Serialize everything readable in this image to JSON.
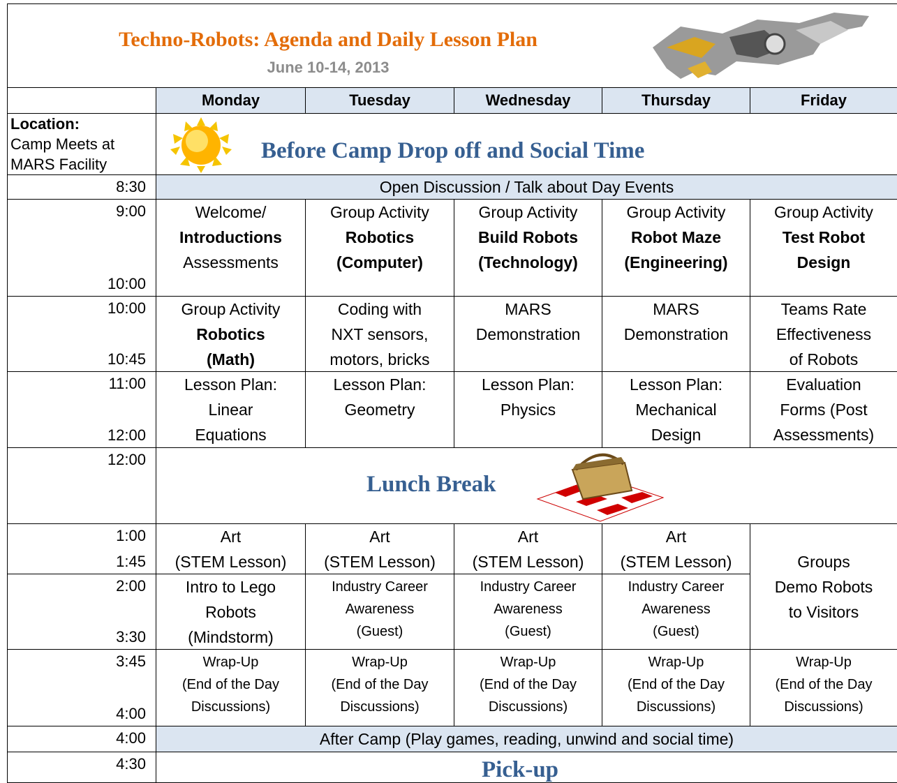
{
  "header": {
    "title": "Techno-Robots: Agenda and Daily Lesson Plan",
    "date": "June 10-14, 2013"
  },
  "table": {
    "days": [
      "Monday",
      "Tuesday",
      "Wednesday",
      "Thursday",
      "Friday"
    ],
    "location": {
      "lines": [
        {
          "text": "Location:",
          "bold": true
        },
        {
          "text": "Camp Meets at"
        },
        {
          "text": "MARS Facility"
        }
      ],
      "banner": "Before Camp Drop off and Social Time"
    },
    "rows": [
      {
        "start": "8:30",
        "span": "Open Discussion / Talk about Day Events",
        "shaded": true
      },
      {
        "start": "9:00",
        "end": "10:00",
        "cells": [
          {
            "lines": [
              {
                "text": "Welcome/"
              },
              {
                "text": "Introductions",
                "bold": true
              },
              {
                "text": "Assessments"
              }
            ]
          },
          {
            "lines": [
              {
                "text": "Group Activity"
              },
              {
                "text": "Robotics",
                "bold": true
              },
              {
                "text": "(Computer)",
                "bold": true
              }
            ]
          },
          {
            "lines": [
              {
                "text": "Group Activity"
              },
              {
                "text": "Build Robots",
                "bold": true
              },
              {
                "text": "(Technology)",
                "bold": true
              }
            ]
          },
          {
            "lines": [
              {
                "text": "Group Activity"
              },
              {
                "text": "Robot Maze",
                "bold": true
              },
              {
                "text": "(Engineering)",
                "bold": true
              }
            ]
          },
          {
            "lines": [
              {
                "text": "Group Activity"
              },
              {
                "text": "Test Robot",
                "bold": true
              },
              {
                "text": "Design",
                "bold": true
              }
            ]
          }
        ]
      },
      {
        "start": "10:00",
        "end": "10:45",
        "cells": [
          {
            "lines": [
              {
                "text": "Group Activity"
              },
              {
                "text": "Robotics",
                "bold": true
              },
              {
                "text": "(Math)",
                "bold": true
              }
            ]
          },
          {
            "lines": [
              {
                "text": "Coding with"
              },
              {
                "text": "NXT sensors,"
              },
              {
                "text": "motors, bricks"
              }
            ]
          },
          {
            "lines": [
              {
                "text": "MARS"
              },
              {
                "text": "Demonstration"
              }
            ]
          },
          {
            "lines": [
              {
                "text": "MARS"
              },
              {
                "text": "Demonstration"
              }
            ]
          },
          {
            "lines": [
              {
                "text": "Teams Rate"
              },
              {
                "text": "Effectiveness"
              },
              {
                "text": "of Robots"
              }
            ]
          }
        ]
      },
      {
        "start": "11:00",
        "end": "12:00",
        "cells": [
          {
            "lines": [
              {
                "text": "Lesson Plan:"
              },
              {
                "text": "Linear"
              },
              {
                "text": "Equations"
              }
            ]
          },
          {
            "lines": [
              {
                "text": "Lesson Plan:"
              },
              {
                "text": "Geometry"
              }
            ]
          },
          {
            "lines": [
              {
                "text": "Lesson Plan:"
              },
              {
                "text": "Physics"
              }
            ]
          },
          {
            "lines": [
              {
                "text": "Lesson Plan:"
              },
              {
                "text": "Mechanical"
              },
              {
                "text": "Design"
              }
            ]
          },
          {
            "lines": [
              {
                "text": "Evaluation"
              },
              {
                "text": "Forms (Post"
              },
              {
                "text": "Assessments)"
              }
            ]
          }
        ]
      },
      {
        "start": "12:00",
        "banner": "Lunch Break"
      },
      {
        "start": "1:00",
        "end": "1:45",
        "cells": [
          {
            "lines": [
              {
                "text": "Art"
              },
              {
                "text": "(STEM Lesson)"
              }
            ]
          },
          {
            "lines": [
              {
                "text": "Art"
              },
              {
                "text": "(STEM Lesson)"
              }
            ]
          },
          {
            "lines": [
              {
                "text": "Art"
              },
              {
                "text": "(STEM Lesson)"
              }
            ]
          },
          {
            "lines": [
              {
                "text": "Art"
              },
              {
                "text": "(STEM Lesson)"
              }
            ]
          },
          {
            "lines": [
              {
                "text": "Groups"
              },
              {
                "text": "Demo Robots"
              },
              {
                "text": "to Visitors"
              }
            ],
            "spans_next_row": true
          }
        ]
      },
      {
        "start": "2:00",
        "end": "3:30",
        "cells": [
          {
            "lines": [
              {
                "text": "Intro to Lego"
              },
              {
                "text": "Robots"
              },
              {
                "text": "(Mindstorm)"
              }
            ]
          },
          {
            "lines": [
              {
                "text": "Industry Career"
              },
              {
                "text": "Awareness"
              },
              {
                "text": "(Guest)"
              }
            ],
            "small": true
          },
          {
            "lines": [
              {
                "text": "Industry Career"
              },
              {
                "text": "Awareness"
              },
              {
                "text": "(Guest)"
              }
            ],
            "small": true
          },
          {
            "lines": [
              {
                "text": "Industry Career"
              },
              {
                "text": "Awareness"
              },
              {
                "text": "(Guest)"
              }
            ],
            "small": true
          }
        ]
      },
      {
        "start": "3:45",
        "end": "4:00",
        "cells": [
          {
            "lines": [
              {
                "text": "Wrap-Up"
              },
              {
                "text": "(End of the Day"
              },
              {
                "text": "Discussions)"
              }
            ],
            "small": true
          },
          {
            "lines": [
              {
                "text": "Wrap-Up"
              },
              {
                "text": "(End of the Day"
              },
              {
                "text": "Discussions)"
              }
            ],
            "small": true
          },
          {
            "lines": [
              {
                "text": "Wrap-Up"
              },
              {
                "text": "(End of the Day"
              },
              {
                "text": "Discussions)"
              }
            ],
            "small": true
          },
          {
            "lines": [
              {
                "text": "Wrap-Up"
              },
              {
                "text": "(End of the Day"
              },
              {
                "text": "Discussions)"
              }
            ],
            "small": true
          },
          {
            "lines": [
              {
                "text": "Wrap-Up"
              },
              {
                "text": "(End of the Day"
              },
              {
                "text": "Discussions)"
              }
            ],
            "small": true
          }
        ]
      },
      {
        "start": "4:00",
        "span": "After Camp (Play games, reading, unwind and social time)",
        "shaded": true
      },
      {
        "start": "4:30",
        "banner": "Pick-up"
      }
    ]
  }
}
